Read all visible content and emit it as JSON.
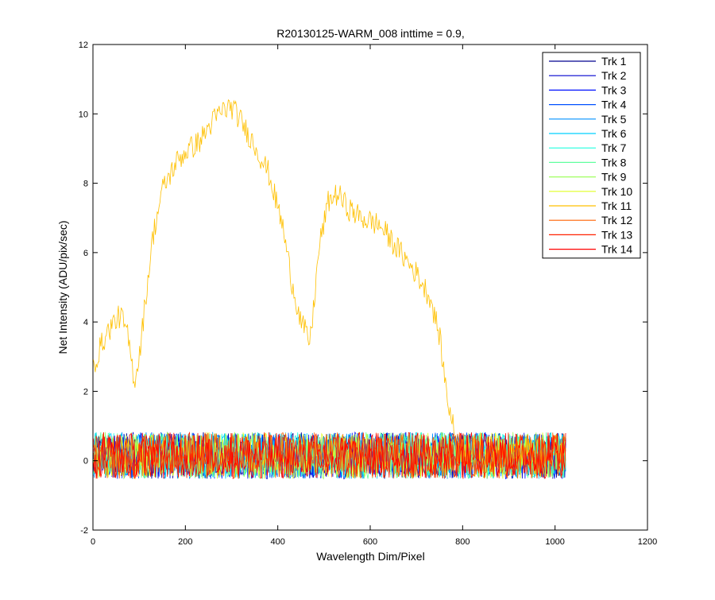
{
  "chart_data": {
    "type": "line",
    "title": "R20130125-WARM_008 inttime = 0.9,",
    "xlabel": "Wavelength Dim/Pixel",
    "ylabel": "Net Intensity (ADU/pix/sec)",
    "xlim": [
      0,
      1200
    ],
    "ylim": [
      -2,
      12
    ],
    "xticks": [
      0,
      200,
      400,
      600,
      800,
      1000,
      1200
    ],
    "yticks": [
      -2,
      0,
      2,
      4,
      6,
      8,
      10,
      12
    ],
    "grid": false,
    "legend_position": "top-right",
    "x_range": [
      1,
      1024
    ],
    "noise_level": {
      "mean": 0.15,
      "amplitude": 0.9
    },
    "series": [
      {
        "name": "Trk 1",
        "color": "#00008F",
        "values": "noise around 0"
      },
      {
        "name": "Trk 2",
        "color": "#0000CF",
        "values": "noise around 0"
      },
      {
        "name": "Trk 3",
        "color": "#0010FF",
        "values": "noise around 0"
      },
      {
        "name": "Trk 4",
        "color": "#0050FF",
        "values": "noise around 0"
      },
      {
        "name": "Trk 5",
        "color": "#0090FF",
        "values": "noise around 0"
      },
      {
        "name": "Trk 6",
        "color": "#00D0FF",
        "values": "noise around 0"
      },
      {
        "name": "Trk 7",
        "color": "#20FFDF",
        "values": "noise around 0"
      },
      {
        "name": "Trk 8",
        "color": "#60FF9F",
        "values": "noise around 0"
      },
      {
        "name": "Trk 9",
        "color": "#A0FF60",
        "values": "noise around 0"
      },
      {
        "name": "Trk 10",
        "color": "#E0FF20",
        "values": "noise around 0"
      },
      {
        "name": "Trk 11",
        "color": "#FFC000",
        "values": "spectrum (see profile)"
      },
      {
        "name": "Trk 12",
        "color": "#FF6000",
        "values": "noise around 0"
      },
      {
        "name": "Trk 13",
        "color": "#FF2000",
        "values": "noise around 0"
      },
      {
        "name": "Trk 14",
        "color": "#FF0000",
        "values": "noise around 0"
      }
    ],
    "spectrum_series": "Trk 11",
    "spectrum_profile": {
      "x": [
        0,
        20,
        40,
        60,
        75,
        90,
        100,
        115,
        130,
        150,
        180,
        200,
        230,
        260,
        280,
        300,
        320,
        350,
        380,
        410,
        430,
        450,
        470,
        490,
        510,
        530,
        550,
        580,
        620,
        660,
        700,
        730,
        750,
        760,
        770,
        790,
        1024
      ],
      "y": [
        2.7,
        3.4,
        3.9,
        4.2,
        3.6,
        2.3,
        3.0,
        4.8,
        6.5,
        7.8,
        8.6,
        8.9,
        9.2,
        9.8,
        10.1,
        10.2,
        9.8,
        9.1,
        8.3,
        6.8,
        5.2,
        4.0,
        3.4,
        6.2,
        7.5,
        7.7,
        7.3,
        7.0,
        6.8,
        6.1,
        5.4,
        4.7,
        3.6,
        2.5,
        1.6,
        0.3,
        0.2
      ]
    }
  }
}
